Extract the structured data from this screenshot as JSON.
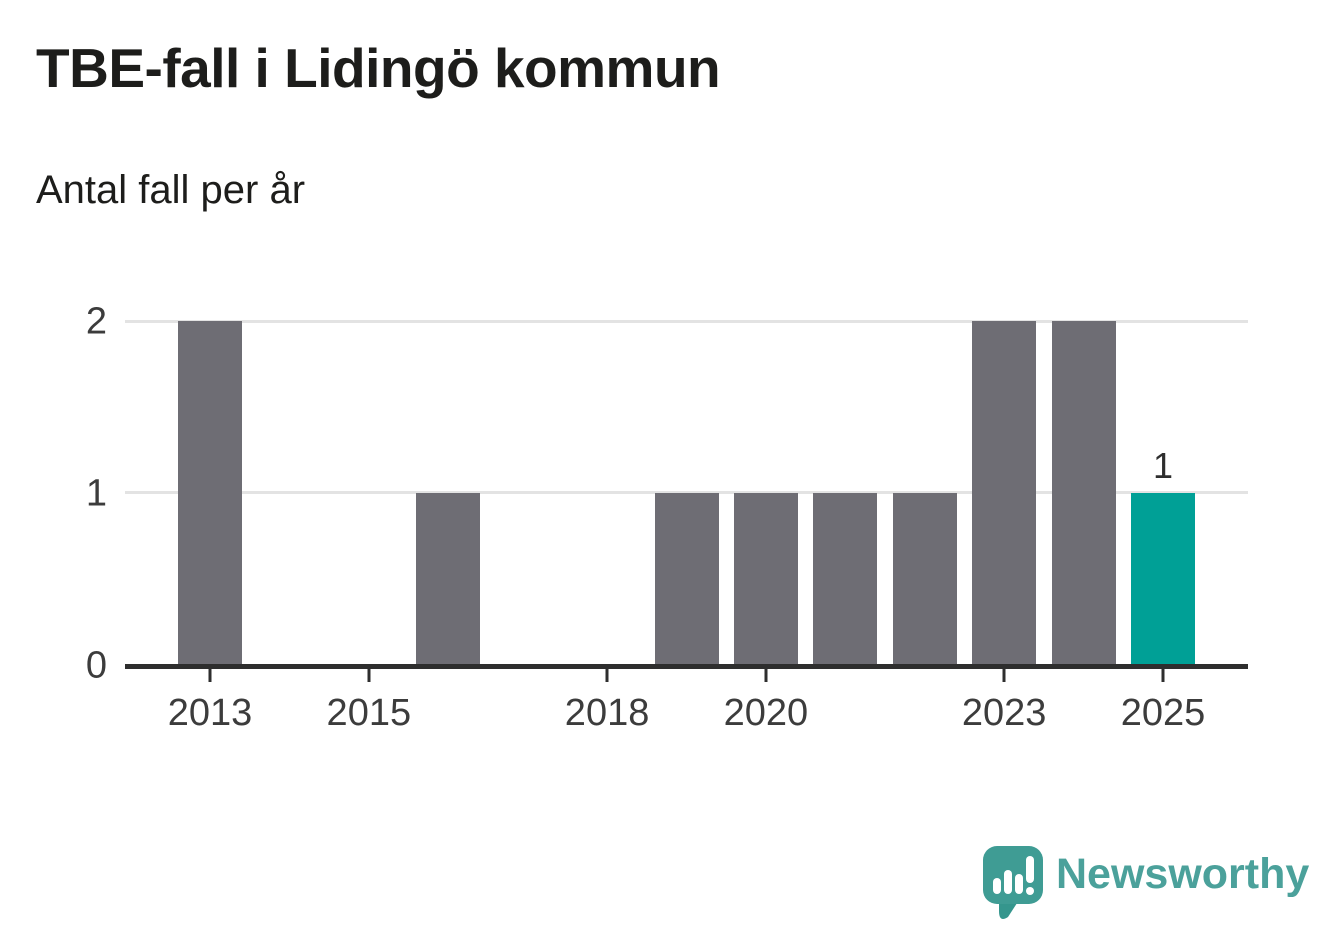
{
  "header": {
    "title": "TBE-fall i Lidingö kommun",
    "subtitle": "Antal fall per år"
  },
  "chart_data": {
    "type": "bar",
    "title": "TBE-fall i Lidingö kommun",
    "subtitle": "Antal fall per år",
    "xlabel": "",
    "ylabel": "Antal fall per år",
    "categories": [
      2013,
      2014,
      2015,
      2016,
      2017,
      2018,
      2019,
      2020,
      2021,
      2022,
      2023,
      2024,
      2025
    ],
    "values": [
      2,
      0,
      0,
      1,
      0,
      0,
      1,
      1,
      1,
      1,
      2,
      2,
      1
    ],
    "ylim": [
      0,
      2
    ],
    "y_ticks": [
      0,
      1,
      2
    ],
    "x_tick_labels": [
      "2013",
      "2015",
      "2018",
      "2020",
      "2023",
      "2025"
    ],
    "grid": "horizontal",
    "legend": "none",
    "highlight_category": 2025,
    "highlight_value_label": "1",
    "colors": {
      "bar": "#6E6D74",
      "highlight": "#00A096",
      "gridline": "#E3E3E3",
      "axis": "#2E2E2E",
      "text": "#3C3C3C"
    }
  },
  "footer": {
    "brand": "Newsworthy",
    "brand_color": "#4BA19B",
    "logo_color": "#3F9C94",
    "logo_tail_color": "#35968D",
    "logo_icon": "speech-bubble-bar-chart-exclamation"
  }
}
